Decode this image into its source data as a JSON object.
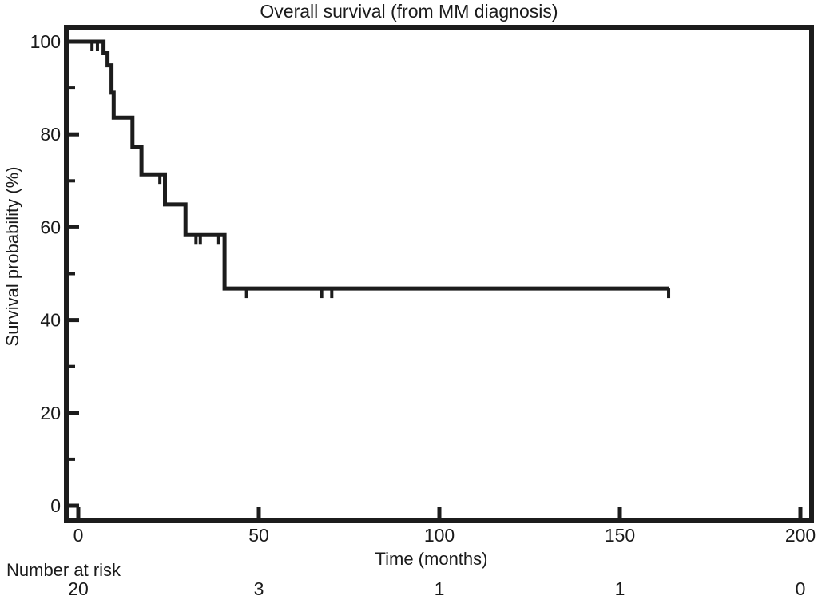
{
  "chart": {
    "title": "Overall survival (from MM diagnosis)",
    "xlabel": "Time (months)",
    "ylabel": "Survival probability (%)"
  },
  "chart_data": {
    "type": "line",
    "subtype": "kaplan-meier-step-curve",
    "title": "Overall survival (from MM diagnosis)",
    "xlabel": "Time (months)",
    "ylabel": "Survival probability (%)",
    "xlim": [
      0,
      200
    ],
    "ylim": [
      0,
      100
    ],
    "x_ticks": [
      0,
      50,
      100,
      150,
      200
    ],
    "y_ticks": [
      0,
      20,
      40,
      60,
      80,
      100
    ],
    "y_minor_ticks": [
      10,
      30,
      50,
      70,
      90
    ],
    "grid": false,
    "legend": false,
    "curve_color": "#1c1c1c",
    "series": [
      {
        "name": "Overall survival",
        "step_points": [
          [
            0,
            100
          ],
          [
            7,
            97.5
          ],
          [
            8.1,
            94.9
          ],
          [
            9.2,
            89.0
          ],
          [
            9.8,
            83.6
          ],
          [
            15,
            77.3
          ],
          [
            17.5,
            71.4
          ],
          [
            24,
            64.9
          ],
          [
            29.7,
            58.3
          ],
          [
            40.5,
            46.8
          ]
        ],
        "end_time": 163.5,
        "censor_marks": [
          [
            3.8,
            100
          ],
          [
            5.3,
            100
          ],
          [
            22.6,
            71.4
          ],
          [
            32.6,
            58.3
          ],
          [
            33.8,
            58.3
          ],
          [
            38.9,
            58.3
          ],
          [
            46.6,
            46.8
          ],
          [
            67.4,
            46.8
          ],
          [
            70.2,
            46.8
          ],
          [
            163.5,
            46.8
          ]
        ]
      }
    ]
  },
  "risk_table": {
    "label": "Number at risk",
    "times": [
      0,
      50,
      100,
      150,
      200
    ],
    "counts": [
      "20",
      "3",
      "1",
      "1",
      "0"
    ]
  }
}
